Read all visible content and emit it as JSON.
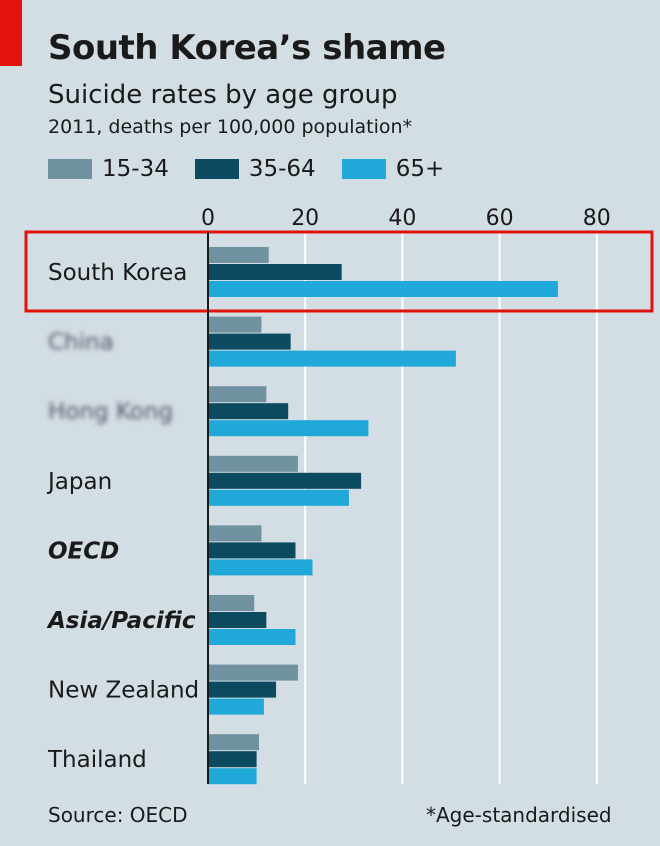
{
  "header": {
    "title": "South Korea’s shame",
    "subtitle": "Suicide rates by age group",
    "units": "2011, deaths per 100,000 population*"
  },
  "footer": {
    "source": "Source: OECD",
    "note": "*Age-standardised"
  },
  "colors": {
    "background": "#d3dde4",
    "red_tag": "#e3120b",
    "highlight_box": "#e3120b",
    "series_15_34": "#6f91a0",
    "series_35_64": "#0c4a60",
    "series_65_plus": "#1fa8d8",
    "gridline": "#ffffff",
    "axis": "#1a1a1a"
  },
  "chart_data": {
    "type": "bar",
    "orientation": "horizontal",
    "title": "South Korea’s shame",
    "subtitle": "Suicide rates by age group",
    "xlabel": "",
    "ylabel": "",
    "xlim": [
      0,
      90
    ],
    "xticks": [
      "0",
      "20",
      "40",
      "60",
      "80"
    ],
    "grid": true,
    "legend_position": "top-left",
    "categories": [
      "South Korea",
      "China",
      "Hong Kong",
      "Japan",
      "OECD",
      "Asia/Pacific",
      "New Zealand",
      "Thailand"
    ],
    "category_style": [
      "normal",
      "blurred",
      "blurred",
      "normal",
      "bold-italic",
      "bold-italic",
      "normal",
      "normal"
    ],
    "highlighted_category": "South Korea",
    "series": [
      {
        "name": "15-34",
        "values": [
          12.5,
          11,
          12,
          18.5,
          11,
          9.5,
          18.5,
          10.5
        ]
      },
      {
        "name": "35-64",
        "values": [
          27.5,
          17,
          16.5,
          31.5,
          18,
          12,
          14,
          10
        ]
      },
      {
        "name": "65+",
        "values": [
          72,
          51,
          33,
          29,
          21.5,
          18,
          11.5,
          10
        ]
      }
    ]
  }
}
